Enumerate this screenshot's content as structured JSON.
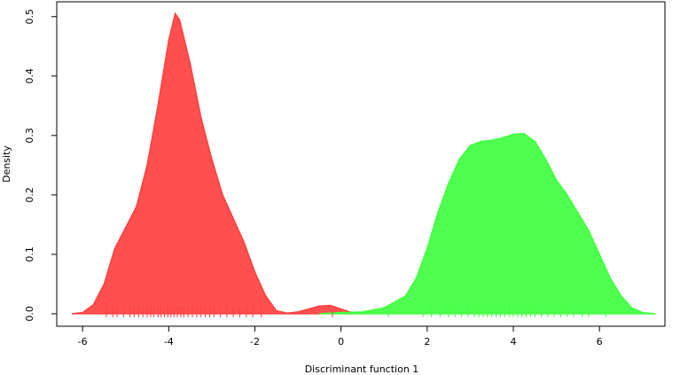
{
  "chart_data": {
    "type": "density",
    "xlabel": "Discriminant function 1",
    "ylabel": "Density",
    "xlim": [
      -6.6,
      7.52
    ],
    "ylim": [
      -0.021,
      0.525
    ],
    "xticks": [
      -6,
      -4,
      -2,
      0,
      2,
      4,
      6
    ],
    "yticks": [
      {
        "value": 0,
        "label": "0.0"
      },
      0.1,
      0.2,
      0.3,
      0.4,
      0.5
    ],
    "series": [
      {
        "color": "#ff4040",
        "x": [
          -6.25,
          -6.0,
          -5.75,
          -5.5,
          -5.25,
          -5.0,
          -4.75,
          -4.5,
          -4.25,
          -4.0,
          -3.85,
          -3.75,
          -3.5,
          -3.25,
          -3.0,
          -2.75,
          -2.5,
          -2.25,
          -2.0,
          -1.75,
          -1.5,
          -1.25,
          -1.0,
          -0.75,
          -0.5,
          -0.25,
          0.0,
          0.25,
          0.5
        ],
        "values": [
          0,
          0.002,
          0.015,
          0.05,
          0.11,
          0.145,
          0.18,
          0.25,
          0.35,
          0.46,
          0.505,
          0.495,
          0.42,
          0.33,
          0.26,
          0.2,
          0.16,
          0.12,
          0.07,
          0.03,
          0.005,
          0.001,
          0.003,
          0.008,
          0.013,
          0.014,
          0.008,
          0.002,
          0
        ],
        "rug": [
          -5.45,
          -5.3,
          -5.2,
          -5.05,
          -4.9,
          -4.8,
          -4.7,
          -4.6,
          -4.5,
          -4.42,
          -4.35,
          -4.25,
          -4.18,
          -4.1,
          -4.02,
          -3.95,
          -3.88,
          -3.8,
          -3.72,
          -3.65,
          -3.55,
          -3.45,
          -3.35,
          -3.25,
          -3.15,
          -3.05,
          -2.95,
          -2.8,
          -2.65,
          -2.5,
          -2.35,
          -2.2,
          -2.05,
          -1.85,
          -0.2
        ]
      },
      {
        "color": "#40ff40",
        "x": [
          -0.5,
          -0.25,
          0.0,
          0.5,
          1.0,
          1.5,
          1.75,
          2.0,
          2.25,
          2.5,
          2.75,
          3.0,
          3.25,
          3.5,
          3.75,
          4.0,
          4.25,
          4.5,
          4.75,
          5.0,
          5.25,
          5.5,
          5.75,
          6.0,
          6.25,
          6.5,
          6.75,
          7.0,
          7.3
        ],
        "values": [
          0,
          0.001,
          0.002,
          0.003,
          0.01,
          0.03,
          0.06,
          0.11,
          0.17,
          0.22,
          0.26,
          0.283,
          0.29,
          0.292,
          0.296,
          0.302,
          0.303,
          0.29,
          0.26,
          0.225,
          0.2,
          0.17,
          0.14,
          0.1,
          0.06,
          0.03,
          0.01,
          0.002,
          0
        ],
        "rug": [
          1.1,
          1.9,
          2.1,
          2.3,
          2.5,
          2.65,
          2.8,
          2.95,
          3.1,
          3.2,
          3.3,
          3.4,
          3.5,
          3.6,
          3.7,
          3.8,
          3.9,
          4.0,
          4.1,
          4.2,
          4.3,
          4.4,
          4.5,
          4.65,
          4.8,
          4.95,
          5.1,
          5.25,
          5.4,
          5.6,
          5.75,
          6.15
        ]
      }
    ]
  }
}
